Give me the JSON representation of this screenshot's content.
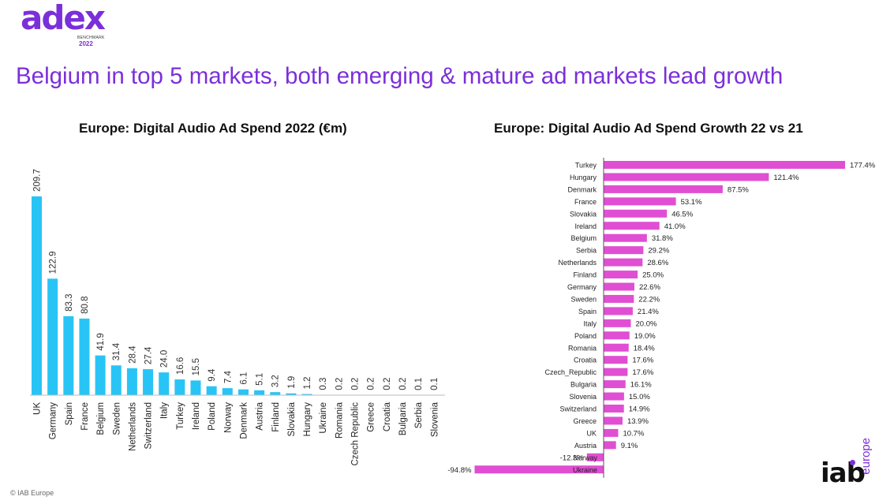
{
  "header": {
    "logo_text": "adex",
    "logo_sub": "BENCHMARK",
    "logo_year": "2022",
    "headline": "Belgium in top 5 markets, both emerging & mature ad markets lead growth"
  },
  "chart_data": [
    {
      "type": "bar",
      "orientation": "vertical",
      "title": "Europe: Digital Audio Ad Spend 2022 (€m)",
      "categories": [
        "UK",
        "Germany",
        "Spain",
        "France",
        "Belgium",
        "Sweden",
        "Netherlands",
        "Switzerland",
        "Italy",
        "Turkey",
        "Ireland",
        "Poland",
        "Norway",
        "Denmark",
        "Austria",
        "Finland",
        "Slovakia",
        "Hungary",
        "Ukraine",
        "Romania",
        "Czech Republic",
        "Greece",
        "Croatia",
        "Bulgaria",
        "Serbia",
        "Slovenia"
      ],
      "values": [
        209.7,
        122.9,
        83.3,
        80.8,
        41.9,
        31.4,
        28.4,
        27.4,
        24.0,
        16.6,
        15.5,
        9.4,
        7.4,
        6.1,
        5.1,
        3.2,
        1.9,
        1.2,
        0.3,
        0.2,
        0.2,
        0.2,
        0.2,
        0.2,
        0.1,
        0.1
      ],
      "labels": [
        "209.7",
        "122.9",
        "83.3",
        "80.8",
        "41.9",
        "31.4",
        "28.4",
        "27.4",
        "24.0",
        "16.6",
        "15.5",
        "9.4",
        "7.4",
        "6.1",
        "5.1",
        "3.2",
        "1.9",
        "1.2",
        "0.3",
        "0.2",
        "0.2",
        "0.2",
        "0.2",
        "0.2",
        "0.1",
        "0.1"
      ],
      "color": "#29c4f6"
    },
    {
      "type": "bar",
      "orientation": "horizontal",
      "title": "Europe: Digital Audio Ad Spend Growth 22 vs 21",
      "categories": [
        "Turkey",
        "Hungary",
        "Denmark",
        "France",
        "Slovakia",
        "Ireland",
        "Belgium",
        "Serbia",
        "Netherlands",
        "Finland",
        "Germany",
        "Sweden",
        "Spain",
        "Italy",
        "Poland",
        "Romania",
        "Croatia",
        "Czech_Republic",
        "Bulgaria",
        "Slovenia",
        "Switzerland",
        "Greece",
        "UK",
        "Austria",
        "Norway",
        "Ukraine"
      ],
      "values": [
        177.4,
        121.4,
        87.5,
        53.1,
        46.5,
        41.0,
        31.8,
        29.2,
        28.6,
        25.0,
        22.6,
        22.2,
        21.4,
        20.0,
        19.0,
        18.4,
        17.6,
        17.6,
        16.1,
        15.0,
        14.9,
        13.9,
        10.7,
        9.1,
        -12.3,
        -94.8
      ],
      "labels": [
        "177.4%",
        "121.4%",
        "87.5%",
        "53.1%",
        "46.5%",
        "41.0%",
        "31.8%",
        "29.2%",
        "28.6%",
        "25.0%",
        "22.6%",
        "22.2%",
        "21.4%",
        "20.0%",
        "19.0%",
        "18.4%",
        "17.6%",
        "17.6%",
        "16.1%",
        "15.0%",
        "14.9%",
        "13.9%",
        "10.7%",
        "9.1%",
        "-12.3%",
        "-94.8%"
      ],
      "color": "#e04fd3"
    }
  ],
  "footer": {
    "copyright": "© IAB Europe"
  },
  "brand": {
    "iab_text": "iab",
    "iab_sub": "europe"
  }
}
